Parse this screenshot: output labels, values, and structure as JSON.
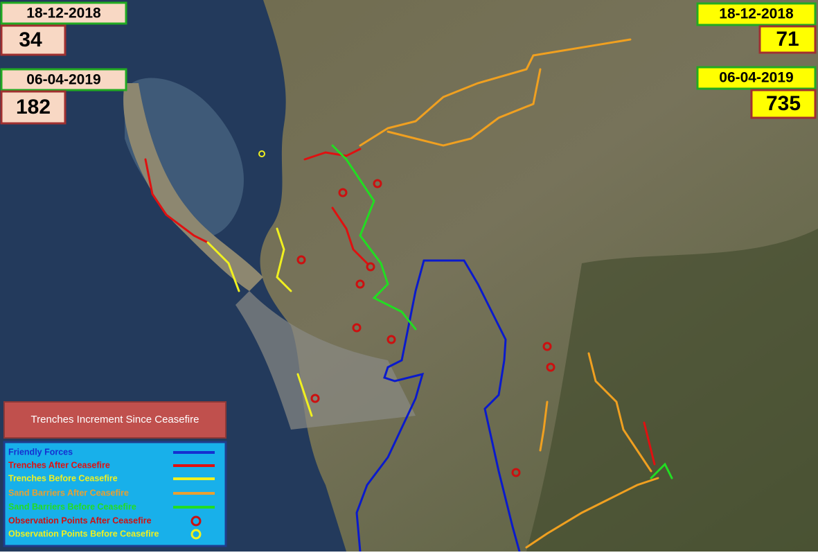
{
  "left_counts": [
    {
      "date": "18-12-2018",
      "count": 34
    },
    {
      "date": "06-04-2019",
      "count": 182
    }
  ],
  "right_counts": [
    {
      "date": "18-12-2018",
      "count": 71
    },
    {
      "date": "06-04-2019",
      "count": 735
    }
  ],
  "legend": {
    "title": "Trenches Increment Since Ceasefire",
    "items": [
      "Friendly Forces",
      "Trenches After Ceasefire",
      "Trenches Before Ceasefire",
      "Sand Barriers After Ceasefire",
      "Sand Barriers Before Ceasefire",
      "Observation Points After Ceasefire",
      "Observation Points Before Ceasefire"
    ]
  }
}
